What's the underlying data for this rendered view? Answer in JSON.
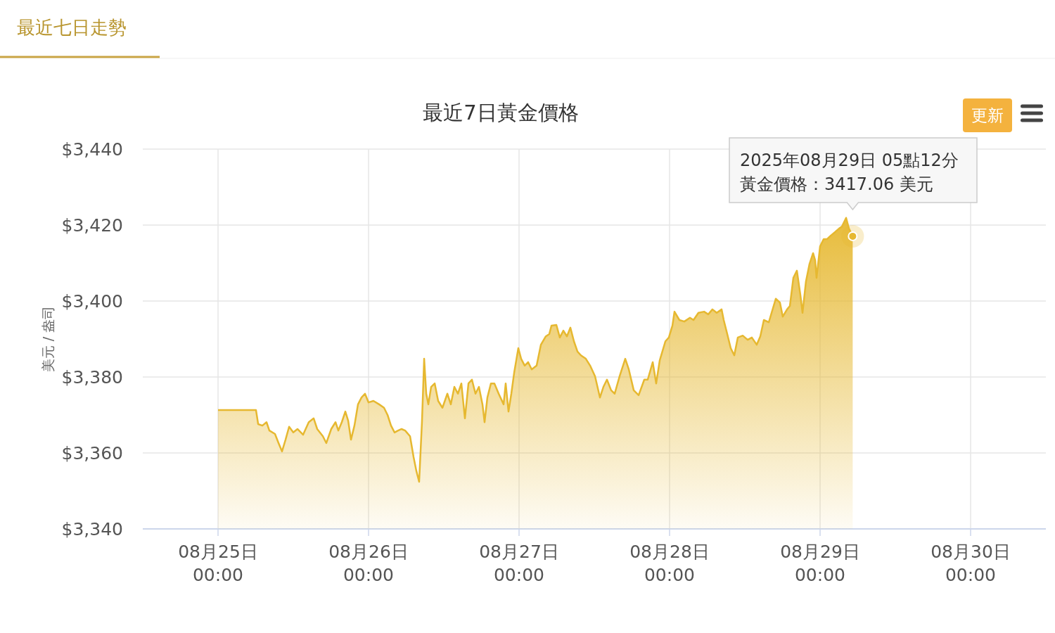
{
  "chart_data": {
    "type": "area",
    "title": "最近7日黃金價格",
    "ylabel": "美元 / 盎司",
    "annotations": [
      "最近七日走勢",
      "更新",
      "2025年08月29日 05點12分",
      "黃金價格：3417.06 美元"
    ],
    "xlim": [
      "2025-08-24T12:00",
      "2025-08-30T12:00"
    ],
    "xticks": [
      {
        "value": "2025-08-25T00:00",
        "label": "08月25日\n00:00"
      },
      {
        "value": "2025-08-26T00:00",
        "label": "08月26日\n00:00"
      },
      {
        "value": "2025-08-27T00:00",
        "label": "08月27日\n00:00"
      },
      {
        "value": "2025-08-28T00:00",
        "label": "08月28日\n00:00"
      },
      {
        "value": "2025-08-29T00:00",
        "label": "08月29日\n00:00"
      },
      {
        "value": "2025-08-30T00:00",
        "label": "08月30日\n00:00"
      }
    ],
    "ylim": [
      3340,
      3440
    ],
    "yticks": [
      {
        "value": 3340,
        "label": "$3,340"
      },
      {
        "value": 3360,
        "label": "$3,360"
      },
      {
        "value": 3380,
        "label": "$3,380"
      },
      {
        "value": 3400,
        "label": "$3,400"
      },
      {
        "value": 3420,
        "label": "$3,420"
      },
      {
        "value": 3440,
        "label": "$3,440"
      }
    ],
    "grid": true,
    "marker": "none",
    "line_style": "solid",
    "series": [
      {
        "color": "#e6b830",
        "x": [
          "2025-08-25T00:00",
          "2025-08-25T06:03",
          "2025-08-25T06:24",
          "2025-08-25T07:04",
          "2025-08-25T07:44",
          "2025-08-25T08:11",
          "2025-08-25T09:05",
          "2025-08-25T09:39",
          "2025-08-25T10:12",
          "2025-08-25T10:46",
          "2025-08-25T11:20",
          "2025-08-25T12:00",
          "2025-08-25T12:40",
          "2025-08-25T13:34",
          "2025-08-25T14:28",
          "2025-08-25T15:15",
          "2025-08-25T15:49",
          "2025-08-25T16:43",
          "2025-08-25T17:16",
          "2025-08-25T18:03",
          "2025-08-25T18:44",
          "2025-08-25T19:11",
          "2025-08-25T19:44",
          "2025-08-25T20:18",
          "2025-08-25T20:45",
          "2025-08-25T21:12",
          "2025-08-25T21:45",
          "2025-08-25T22:19",
          "2025-08-25T22:53",
          "2025-08-25T23:26",
          "2025-08-26T00:00",
          "2025-08-26T00:47",
          "2025-08-26T01:41",
          "2025-08-26T02:28",
          "2025-08-26T03:02",
          "2025-08-26T03:35",
          "2025-08-26T04:09",
          "2025-08-26T04:43",
          "2025-08-26T05:16",
          "2025-08-26T05:50",
          "2025-08-26T06:37",
          "2025-08-26T07:11",
          "2025-08-26T07:38",
          "2025-08-26T08:04",
          "2025-08-26T08:31",
          "2025-08-26T08:52",
          "2025-08-26T09:12",
          "2025-08-26T09:32",
          "2025-08-26T09:59",
          "2025-08-26T10:33",
          "2025-08-26T11:06",
          "2025-08-26T11:47",
          "2025-08-26T12:34",
          "2025-08-26T13:07",
          "2025-08-26T13:41",
          "2025-08-26T14:15",
          "2025-08-26T14:48",
          "2025-08-26T15:22",
          "2025-08-26T15:56",
          "2025-08-26T16:29",
          "2025-08-26T17:03",
          "2025-08-26T17:36",
          "2025-08-26T18:10",
          "2025-08-26T18:30",
          "2025-08-26T18:57",
          "2025-08-26T19:31",
          "2025-08-26T20:04",
          "2025-08-26T20:45",
          "2025-08-26T21:32",
          "2025-08-26T21:52",
          "2025-08-26T22:19",
          "2025-08-26T22:46",
          "2025-08-26T23:13",
          "2025-08-26T23:53",
          "2025-08-27T00:20",
          "2025-08-27T00:54",
          "2025-08-27T01:27",
          "2025-08-27T02:01",
          "2025-08-27T02:48",
          "2025-08-27T03:29",
          "2025-08-27T04:16",
          "2025-08-27T04:49",
          "2025-08-27T05:10",
          "2025-08-27T05:57",
          "2025-08-27T06:30",
          "2025-08-27T07:04",
          "2025-08-27T07:38",
          "2025-08-27T08:11",
          "2025-08-27T08:45",
          "2025-08-27T09:19",
          "2025-08-27T09:52",
          "2025-08-27T10:39",
          "2025-08-27T11:20",
          "2025-08-27T12:07",
          "2025-08-27T12:54",
          "2025-08-27T13:27",
          "2025-08-27T14:01",
          "2025-08-27T14:41",
          "2025-08-27T15:15",
          "2025-08-27T16:02",
          "2025-08-27T16:56",
          "2025-08-27T17:30",
          "2025-08-27T18:17",
          "2025-08-27T19:04",
          "2025-08-27T19:58",
          "2025-08-27T20:31",
          "2025-08-27T21:19",
          "2025-08-27T21:52",
          "2025-08-27T22:26",
          "2025-08-27T23:20",
          "2025-08-27T23:53",
          "2025-08-28T00:27",
          "2025-08-28T00:47",
          "2025-08-28T01:34",
          "2025-08-28T02:21",
          "2025-08-28T03:15",
          "2025-08-28T03:49",
          "2025-08-28T04:36",
          "2025-08-28T05:30",
          "2025-08-28T06:10",
          "2025-08-28T06:50",
          "2025-08-28T07:31",
          "2025-08-28T08:18",
          "2025-08-28T08:38",
          "2025-08-28T09:12",
          "2025-08-28T09:45",
          "2025-08-28T10:19",
          "2025-08-28T10:53",
          "2025-08-28T11:40",
          "2025-08-28T12:27",
          "2025-08-28T13:07",
          "2025-08-28T13:54",
          "2025-08-28T14:28",
          "2025-08-28T15:02",
          "2025-08-28T15:49",
          "2025-08-28T16:29",
          "2025-08-28T16:56",
          "2025-08-28T17:36",
          "2025-08-28T18:03",
          "2025-08-28T18:44",
          "2025-08-28T19:11",
          "2025-08-28T19:44",
          "2025-08-28T20:18",
          "2025-08-28T20:52",
          "2025-08-28T21:12",
          "2025-08-28T21:45",
          "2025-08-28T22:19",
          "2025-08-28T22:53",
          "2025-08-28T23:13",
          "2025-08-28T23:26",
          "2025-08-29T00:00",
          "2025-08-29T00:34",
          "2025-08-29T01:07",
          "2025-08-29T01:41",
          "2025-08-29T02:21",
          "2025-08-29T03:02",
          "2025-08-29T03:29",
          "2025-08-29T04:09",
          "2025-08-29T04:36",
          "2025-08-29T05:12"
        ],
        "values": [
          3371.3,
          3371.3,
          3367.6,
          3367.2,
          3368.1,
          3365.9,
          3365.0,
          3362.6,
          3360.4,
          3363.5,
          3366.9,
          3365.4,
          3366.3,
          3364.8,
          3368.1,
          3369.1,
          3366.3,
          3364.4,
          3362.6,
          3366.3,
          3368.1,
          3365.9,
          3368.1,
          3370.9,
          3368.5,
          3363.5,
          3367.2,
          3372.8,
          3374.6,
          3375.6,
          3373.3,
          3373.7,
          3372.8,
          3371.9,
          3370.0,
          3367.2,
          3365.4,
          3365.9,
          3366.3,
          3365.9,
          3364.4,
          3358.9,
          3355.2,
          3352.4,
          3368.1,
          3384.8,
          3375.6,
          3372.8,
          3377.4,
          3378.3,
          3373.7,
          3371.9,
          3375.6,
          3372.8,
          3377.4,
          3375.6,
          3378.3,
          3369.1,
          3378.3,
          3379.3,
          3375.6,
          3377.4,
          3372.8,
          3368.1,
          3374.6,
          3378.3,
          3378.3,
          3375.6,
          3372.8,
          3378.3,
          3370.9,
          3375.6,
          3381.1,
          3387.6,
          3384.8,
          3383.0,
          3383.9,
          3382.0,
          3383.0,
          3388.5,
          3390.7,
          3391.3,
          3393.5,
          3393.7,
          3390.4,
          3392.2,
          3390.7,
          3393.0,
          3389.4,
          3386.7,
          3385.7,
          3384.8,
          3383.0,
          3380.2,
          3374.6,
          3377.4,
          3379.3,
          3376.5,
          3375.6,
          3380.2,
          3384.8,
          3382.0,
          3376.5,
          3375.2,
          3379.3,
          3379.3,
          3383.9,
          3378.3,
          3384.4,
          3389.4,
          3390.4,
          3393.5,
          3397.2,
          3395.0,
          3394.6,
          3395.6,
          3395.0,
          3396.9,
          3397.2,
          3396.5,
          3397.8,
          3396.9,
          3397.8,
          3395.0,
          3391.3,
          3387.6,
          3385.7,
          3390.4,
          3390.9,
          3389.8,
          3390.4,
          3388.5,
          3390.7,
          3395.0,
          3394.4,
          3398.1,
          3400.6,
          3399.6,
          3395.9,
          3397.8,
          3398.7,
          3406.1,
          3408.0,
          3401.5,
          3396.9,
          3405.2,
          3409.8,
          3412.6,
          3410.7,
          3406.1,
          3414.4,
          3416.3,
          3416.3,
          3417.2,
          3418.1,
          3419.1,
          3419.6,
          3421.9,
          3419.1,
          3417.06
        ]
      }
    ]
  }
}
